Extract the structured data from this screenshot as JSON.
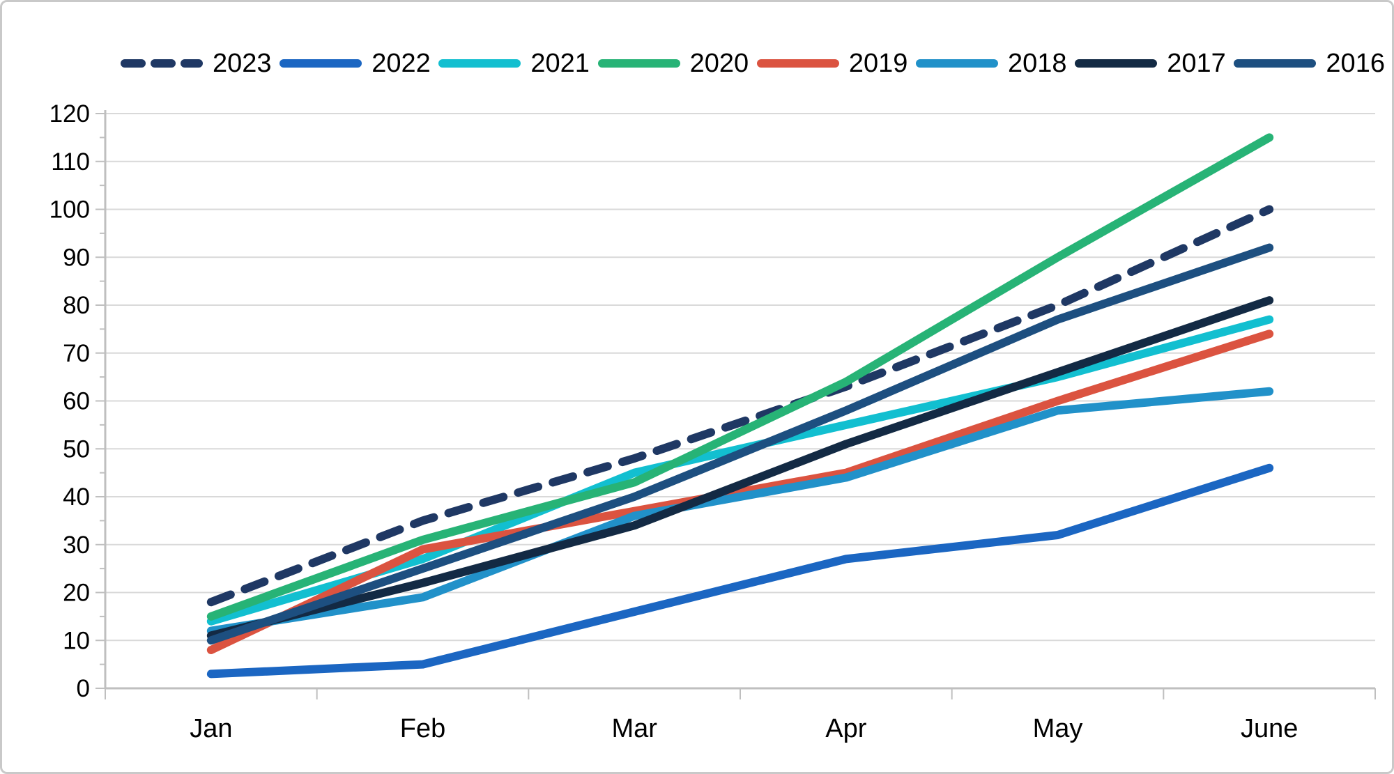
{
  "chart_data": {
    "type": "line",
    "title": "",
    "x": [
      "Jan",
      "Feb",
      "Mar",
      "Apr",
      "May",
      "June"
    ],
    "y_tick_labels": [
      "0",
      "10",
      "20",
      "30",
      "40",
      "50",
      "60",
      "70",
      "80",
      "90",
      "100",
      "110",
      "120"
    ],
    "ylim": [
      0,
      120
    ],
    "y_step": 10,
    "grid": "horizontal-only",
    "legend_position": "top",
    "series": [
      {
        "name": "2023",
        "color": "#1F3864",
        "dashed": true,
        "values": [
          18,
          35,
          48,
          63,
          80,
          100
        ]
      },
      {
        "name": "2022",
        "color": "#1B66C2",
        "dashed": false,
        "values": [
          3,
          5,
          16,
          27,
          32,
          46
        ]
      },
      {
        "name": "2021",
        "color": "#12BFD0",
        "dashed": false,
        "values": [
          14,
          27,
          45,
          55,
          65,
          77
        ]
      },
      {
        "name": "2020",
        "color": "#27B376",
        "dashed": false,
        "values": [
          15,
          31,
          43,
          64,
          90,
          115
        ]
      },
      {
        "name": "2019",
        "color": "#DB5340",
        "dashed": false,
        "values": [
          8,
          29,
          37,
          45,
          60,
          74
        ]
      },
      {
        "name": "2018",
        "color": "#2191C9",
        "dashed": false,
        "values": [
          12,
          19,
          36,
          44,
          58,
          62
        ]
      },
      {
        "name": "2017",
        "color": "#132A44",
        "dashed": false,
        "values": [
          11,
          22,
          34,
          51,
          66,
          81
        ]
      },
      {
        "name": "2016",
        "color": "#1D4F80",
        "dashed": false,
        "values": [
          10,
          25,
          40,
          58,
          77,
          92
        ]
      }
    ],
    "style_colors": {
      "gridline": "#D9D9D9",
      "axis": "#BFBFBF",
      "text": "#000000"
    }
  }
}
